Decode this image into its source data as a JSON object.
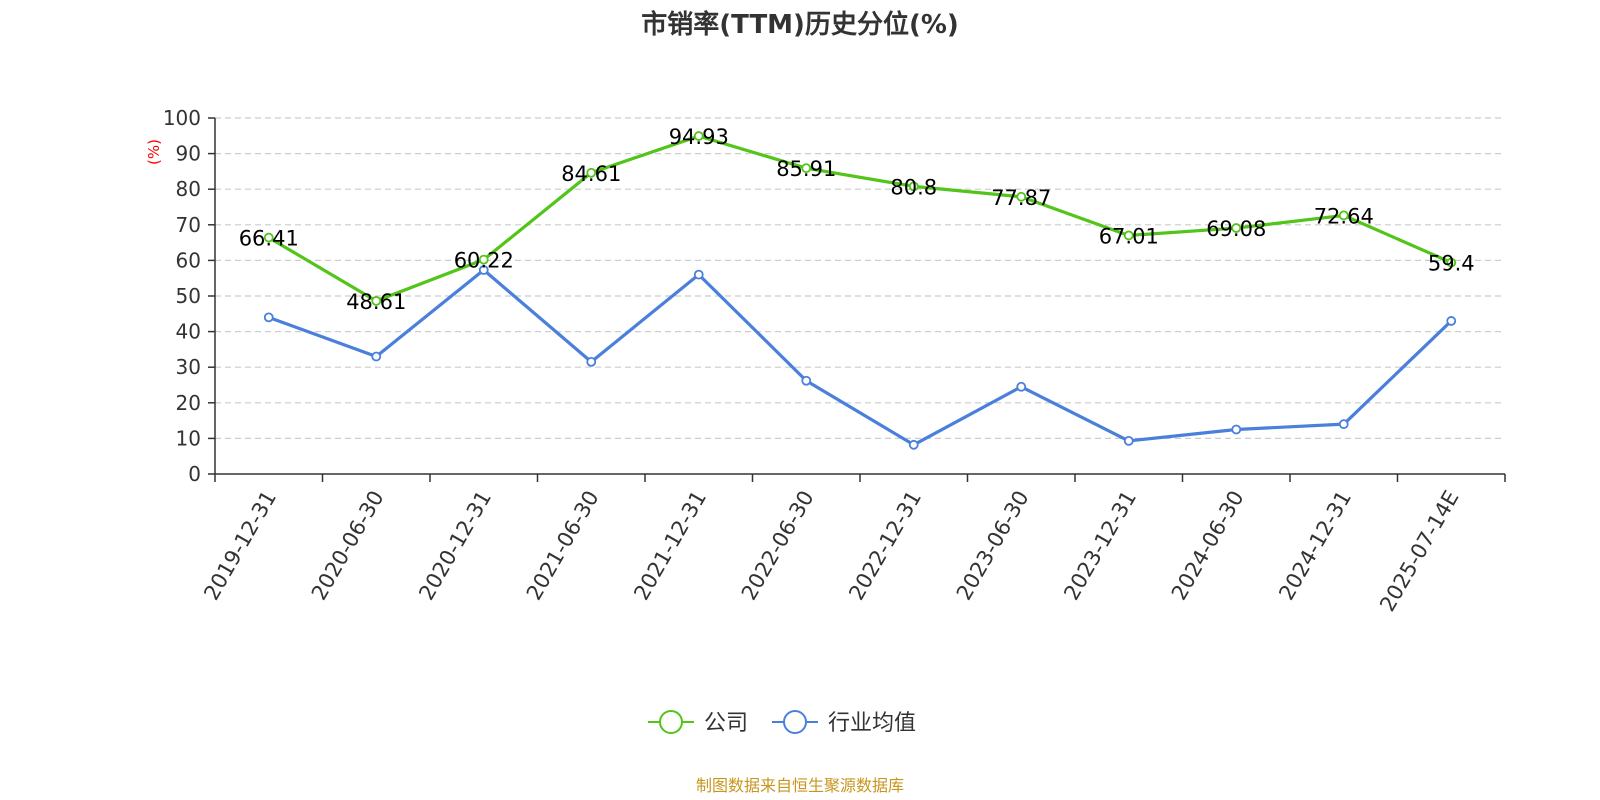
{
  "chart_data": {
    "type": "line",
    "title": "市销率(TTM)历史分位(%)",
    "ylabel": "(%)",
    "ylim": [
      0,
      100
    ],
    "yticks": [
      0,
      10,
      20,
      30,
      40,
      50,
      60,
      70,
      80,
      90,
      100
    ],
    "grid": true,
    "legend_position": "bottom",
    "categories": [
      "2019-12-31",
      "2020-06-30",
      "2020-12-31",
      "2021-06-30",
      "2021-12-31",
      "2022-06-30",
      "2022-12-31",
      "2023-06-30",
      "2023-12-31",
      "2024-06-30",
      "2024-12-31",
      "2025-07-14E"
    ],
    "series": [
      {
        "name": "公司",
        "color": "#52c41a",
        "show_labels": true,
        "values": [
          66.41,
          48.61,
          60.22,
          84.61,
          94.93,
          85.91,
          80.8,
          77.87,
          67.01,
          69.08,
          72.64,
          59.4
        ],
        "labels": [
          "66.41",
          "48.61",
          "60.22",
          "84.61",
          "94.93",
          "85.91",
          "80.8",
          "77.87",
          "67.01",
          "69.08",
          "72.64",
          "59.4"
        ]
      },
      {
        "name": "行业均值",
        "color": "#4a7fdc",
        "show_labels": false,
        "values": [
          44,
          33,
          57.3,
          31.5,
          56,
          26.2,
          8.2,
          24.5,
          9.3,
          12.5,
          14,
          43
        ]
      }
    ],
    "source": "制图数据来自恒生聚源数据库",
    "colors": {
      "axis": "#333333",
      "grid": "#cccccc",
      "unit": "#ff0000",
      "source": "#c8961e"
    }
  }
}
